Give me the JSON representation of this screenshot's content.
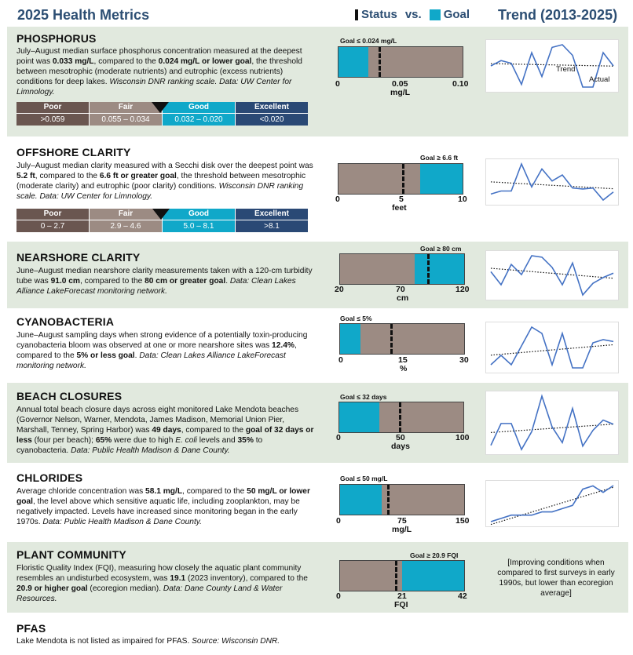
{
  "header": {
    "title": "2025 Health Metrics",
    "status_label": "Status",
    "vs_label": "vs.",
    "goal_label": "Goal",
    "trend_title": "Trend (2013-2025)"
  },
  "colors": {
    "status_bar": "#9c8b83",
    "goal": "#10a8c9",
    "header_text": "#2c4e73",
    "section_shade": "#e1e9de",
    "poor": "#6a5650",
    "fair": "#9c8b83",
    "good": "#10a8c9",
    "excellent": "#2a4975"
  },
  "metrics": [
    {
      "title": "PHOSPHORUS",
      "desc_html": "July–August median surface phosphorus concentration measured at the deepest point was <b>0.033 mg/L</b>, compared to the <b>0.024 mg/L or lower goal</b>, the threshold between mesotrophic (moderate nutrients) and eutrophic (excess nutrients) conditions for deep lakes. <i>Wisconsin DNR ranking scale. Data: UW Center for Limnology.</i>",
      "goal_label": "Goal ≤ 0.024 mg/L",
      "ticks": [
        "0",
        "0.05",
        "0.10"
      ],
      "unit": "mg/L",
      "min": 0,
      "max": 0.1,
      "goal": 0.024,
      "status": 0.033,
      "goal_direction": "below",
      "scale": [
        {
          "label": "Poor",
          "value": ">0.059"
        },
        {
          "label": "Fair",
          "value": "0.055 – 0.034"
        },
        {
          "label": "Good",
          "value": "0.032 – 0.020"
        },
        {
          "label": "Excellent",
          "value": "<0.020"
        }
      ],
      "trend_labels": {
        "trend": "Trend",
        "actual": "Actual"
      },
      "trend_series": [
        0.033,
        0.035,
        0.034,
        0.026,
        0.038,
        0.029,
        0.04,
        0.041,
        0.037,
        0.025,
        0.025,
        0.038,
        0.033
      ]
    },
    {
      "title": "OFFSHORE CLARITY",
      "desc_html": "July–August median clarity measured with a Secchi disk over the deepest point was <b>5.2 ft</b>, compared to the <b>6.6 ft or greater goal</b>, the threshold between mesotrophic (moderate clarity) and eutrophic (poor clarity) conditions. <i>Wisconsin DNR ranking scale. Data: UW Center for Limnology.</i>",
      "goal_label": "Goal ≥ 6.6 ft",
      "ticks": [
        "0",
        "5",
        "10"
      ],
      "unit": "feet",
      "min": 0,
      "max": 10,
      "goal": 6.6,
      "status": 5.2,
      "goal_direction": "above",
      "scale": [
        {
          "label": "Poor",
          "value": "0 – 2.7"
        },
        {
          "label": "Fair",
          "value": "2.9 – 4.6"
        },
        {
          "label": "Good",
          "value": "5.0 – 8.1"
        },
        {
          "label": "Excellent",
          "value": ">8.1"
        }
      ],
      "trend_series": [
        5.0,
        5.3,
        5.3,
        8.0,
        5.7,
        7.5,
        6.3,
        6.9,
        5.6,
        5.5,
        5.6,
        4.4,
        5.2
      ]
    },
    {
      "title": "NEARSHORE CLARITY",
      "desc_html": "June–August median nearshore clarity measurements taken with a 120-cm turbidity tube was <b>91.0 cm</b>, compared to the <b>80 cm or greater goal</b>. <i>Data: Clean Lakes Alliance LakeForecast monitoring network.</i>",
      "goal_label": "Goal ≥ 80 cm",
      "ticks": [
        "20",
        "70",
        "120"
      ],
      "unit": "cm",
      "min": 20,
      "max": 120,
      "goal": 80,
      "status": 91,
      "goal_direction": "above",
      "trend_series": [
        92,
        83,
        97,
        90,
        103,
        102,
        95,
        83,
        98,
        76,
        84,
        88,
        91
      ]
    },
    {
      "title": "CYANOBACTERIA",
      "desc_html": "June–August sampling days when strong evidence of a potentially toxin-producing cyanobacteria bloom was observed at one or more nearshore sites was <b>12.4%</b>, compared to the <b>5% or less goal</b>. <i>Data: Clean Lakes Alliance LakeForecast monitoring network.</i>",
      "goal_label": "Goal ≤ 5%",
      "ticks": [
        "0",
        "15",
        "30"
      ],
      "unit": "%",
      "min": 0,
      "max": 30,
      "goal": 5,
      "status": 12.4,
      "goal_direction": "below",
      "trend_series": [
        5,
        8,
        5,
        11,
        17,
        15,
        5,
        15,
        4,
        4,
        12,
        13,
        12.4
      ]
    },
    {
      "title": "BEACH CLOSURES",
      "desc_html": "Annual total beach closure days across eight monitored Lake Mendota beaches (Governor Nelson, Warner, Mendota, James Madison, Memorial Union Pier, Marshall, Tenney, Spring Harbor) was <b>49 days</b>, compared to the <b>goal of 32 days or less</b> (four per beach); <b>65%</b> were due to high <i>E. coli</i> levels and <b>35%</b> to cyanobacteria. <i>Data: Public Health Madison &amp; Dane County.</i>",
      "goal_label": "Goal ≤ 32 days",
      "ticks": [
        "0",
        "50",
        "100"
      ],
      "unit": "days",
      "min": 0,
      "max": 100,
      "goal": 32,
      "status": 49,
      "goal_direction": "below",
      "trend_series": [
        18,
        50,
        50,
        12,
        38,
        90,
        45,
        22,
        72,
        17,
        40,
        55,
        49
      ]
    },
    {
      "title": "CHLORIDES",
      "desc_html": "Average chloride concentration was <b>58.1 mg/L</b>, compared to the <b>50 mg/L or lower goal</b>, the level above which sensitive aquatic life, including zooplankton, may be negatively impacted. Levels have increased since monitoring began in the early 1970s. <i>Data: Public Health Madison &amp; Dane County.</i>",
      "goal_label": "Goal ≤ 50 mg/L",
      "ticks": [
        "0",
        "75",
        "150"
      ],
      "unit": "mg/L",
      "min": 0,
      "max": 150,
      "goal": 50,
      "status": 58.1,
      "goal_direction": "below",
      "trend_series": [
        47,
        48,
        49,
        49,
        49,
        50,
        50,
        51,
        52,
        57,
        58,
        56,
        58.1
      ]
    },
    {
      "title": "PLANT COMMUNITY",
      "desc_html": "Floristic Quality Index (FQI), measuring how closely the aquatic plant community resembles an undisturbed ecosystem, was <b>19.1</b> (2023 inventory), compared to the <b>20.9 or higher goal</b> (ecoregion median). <i>Data: Dane County Land &amp; Water Resources.</i>",
      "goal_label": "Goal ≥ 20.9 FQI",
      "ticks": [
        "0",
        "21",
        "42"
      ],
      "unit": "FQI",
      "min": 0,
      "max": 42,
      "goal": 20.9,
      "status": 19.1,
      "goal_direction": "above",
      "note": "[Improving conditions when compared to first surveys in early 1990s, but lower than ecoregion average]"
    },
    {
      "title": "PFAS",
      "desc_html": "Lake Mendota is not listed as impaired for PFAS. <i>Source: Wisconsin DNR.</i>"
    }
  ]
}
